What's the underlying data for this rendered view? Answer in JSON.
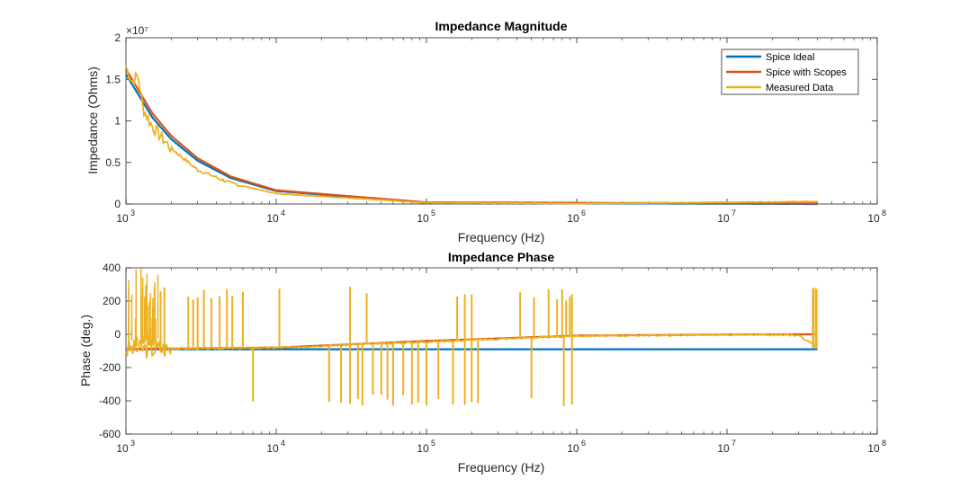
{
  "chart_data": [
    {
      "type": "line",
      "title": "Impedance Magnitude",
      "xlabel": "Frequency (Hz)",
      "ylabel": "Impedance (Ohms)",
      "xscale": "log",
      "xlim": [
        1000,
        100000000
      ],
      "ylim": [
        0,
        20000000
      ],
      "exponent_label": "×10⁷",
      "x_ticks": [
        {
          "base": "10",
          "exp": "3",
          "value": 1000
        },
        {
          "base": "10",
          "exp": "4",
          "value": 10000
        },
        {
          "base": "10",
          "exp": "5",
          "value": 100000
        },
        {
          "base": "10",
          "exp": "6",
          "value": 1000000
        },
        {
          "base": "10",
          "exp": "7",
          "value": 10000000
        },
        {
          "base": "10",
          "exp": "8",
          "value": 100000000
        }
      ],
      "y_ticks": [
        {
          "label": "0",
          "value": 0
        },
        {
          "label": "0.5",
          "value": 5000000
        },
        {
          "label": "1",
          "value": 10000000
        },
        {
          "label": "1.5",
          "value": 15000000
        },
        {
          "label": "2",
          "value": 20000000
        }
      ],
      "legend": {
        "placement": "top-right"
      },
      "series": [
        {
          "name": "Spice Ideal",
          "color": "#0072BD",
          "kind": "magnitude_ideal"
        },
        {
          "name": "Spice with Scopes",
          "color": "#D95319",
          "kind": "magnitude_scopes"
        },
        {
          "name": "Measured Data",
          "color": "#EDB120",
          "kind": "magnitude_measured"
        }
      ],
      "x_max_data": 40000000,
      "points": {
        "ideal": [
          [
            1000,
            15600000
          ],
          [
            1500,
            10400000
          ],
          [
            2000,
            7800000
          ],
          [
            3000,
            5200000
          ],
          [
            5000,
            3120000
          ],
          [
            10000,
            1560000
          ],
          [
            100000,
            156000
          ],
          [
            40000000,
            390
          ]
        ],
        "scopes": [
          [
            1000,
            16200000
          ],
          [
            1500,
            10900000
          ],
          [
            2000,
            8200000
          ],
          [
            3000,
            5500000
          ],
          [
            5000,
            3300000
          ],
          [
            10000,
            1650000
          ],
          [
            100000,
            200000
          ],
          [
            40000000,
            60000
          ]
        ],
        "measured": [
          [
            1000,
            16500000
          ],
          [
            1100,
            14700000
          ],
          [
            1200,
            15500000
          ],
          [
            1300,
            11500000
          ],
          [
            1500,
            9300000
          ],
          [
            2000,
            6700000
          ],
          [
            3000,
            4100000
          ],
          [
            5000,
            2500000
          ],
          [
            10000,
            1250000
          ],
          [
            100000,
            150000
          ],
          [
            1000000,
            60000
          ],
          [
            40000000,
            300000
          ]
        ]
      }
    },
    {
      "type": "line",
      "title": "Impedance Phase",
      "xlabel": "Frequency (Hz)",
      "ylabel": "Phase (deg.)",
      "xscale": "log",
      "xlim": [
        1000,
        100000000
      ],
      "ylim": [
        -600,
        400
      ],
      "x_ticks": [
        {
          "base": "10",
          "exp": "3",
          "value": 1000
        },
        {
          "base": "10",
          "exp": "4",
          "value": 10000
        },
        {
          "base": "10",
          "exp": "5",
          "value": 100000
        },
        {
          "base": "10",
          "exp": "6",
          "value": 1000000
        },
        {
          "base": "10",
          "exp": "7",
          "value": 10000000
        },
        {
          "base": "10",
          "exp": "8",
          "value": 100000000
        }
      ],
      "y_ticks": [
        {
          "label": "400",
          "value": 400
        },
        {
          "label": "200",
          "value": 200
        },
        {
          "label": "0",
          "value": 0
        },
        {
          "label": "-200",
          "value": -200
        },
        {
          "label": "-400",
          "value": -400
        },
        {
          "label": "-600",
          "value": -600
        }
      ],
      "series": [
        {
          "name": "Spice Ideal",
          "color": "#0072BD",
          "kind": "phase_ideal"
        },
        {
          "name": "Spice with Scopes",
          "color": "#D95319",
          "kind": "phase_scopes"
        },
        {
          "name": "Measured Data",
          "color": "#EDB120",
          "kind": "phase_measured"
        }
      ],
      "points": {
        "ideal": [
          [
            1000,
            -90
          ],
          [
            40000000,
            -90
          ]
        ],
        "scopes": [
          [
            1000,
            -88
          ],
          [
            10000,
            -80
          ],
          [
            100000,
            -40
          ],
          [
            1000000,
            -8
          ],
          [
            10000000,
            -1
          ],
          [
            40000000,
            0
          ]
        ],
        "measured_baseline": [
          [
            1000,
            -88
          ],
          [
            10000,
            -80
          ],
          [
            100000,
            -45
          ],
          [
            1000000,
            -10
          ],
          [
            10000000,
            -2
          ],
          [
            30000000,
            -5
          ],
          [
            40000000,
            -80
          ]
        ],
        "measured_spikes_up": [
          1700,
          1800,
          2600,
          2800,
          3000,
          3300,
          3700,
          4200,
          4700,
          5100,
          6000,
          10500,
          31000,
          40000,
          160000,
          180000,
          200000,
          420000,
          520000,
          650000,
          740000,
          800000,
          850000,
          900000,
          930000
        ],
        "measured_spikes_down": [
          7000,
          22500,
          27000,
          31000,
          35000,
          37500,
          44000,
          50000,
          55000,
          60000,
          70000,
          80000,
          88000,
          100000,
          120000,
          150000,
          180000,
          200000,
          220000,
          500000,
          820000,
          930000
        ]
      }
    }
  ]
}
